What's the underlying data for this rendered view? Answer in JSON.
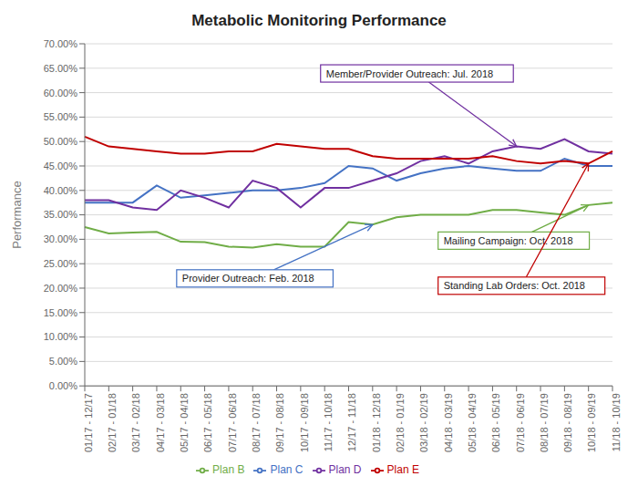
{
  "chart_data": {
    "type": "line",
    "title": "Metabolic Monitoring Performance",
    "ylabel": "Performance",
    "categories": [
      "01/17 - 12/17",
      "02/17 - 01/18",
      "03/17 - 02/18",
      "04/17 - 03/18",
      "05/17 - 04/18",
      "06/17 - 05/18",
      "07/17 - 06/18",
      "08/17 - 07/18",
      "09/17 - 08/18",
      "10/17 - 09/18",
      "11/17 - 10/18",
      "12/17 - 11/18",
      "01/18 - 12/18",
      "02/18 - 01/19",
      "03/18 - 02/19",
      "04/18 - 03/19",
      "05/18 - 04/19",
      "06/18 - 05/19",
      "07/18 - 06/19",
      "08/18 - 07/19",
      "09/18 - 08/19",
      "10/18 - 09/19",
      "11/18 - 10/19"
    ],
    "series": [
      {
        "name": "Plan B",
        "color": "#70ad47",
        "values": [
          32.5,
          31.2,
          31.4,
          31.5,
          29.5,
          29.4,
          28.5,
          28.3,
          29.0,
          28.5,
          28.5,
          33.5,
          33.0,
          34.5,
          35.0,
          35.0,
          35.0,
          36.0,
          36.0,
          35.5,
          35.0,
          37.0,
          37.5
        ]
      },
      {
        "name": "Plan C",
        "color": "#4472c4",
        "values": [
          37.5,
          37.5,
          37.5,
          41.0,
          38.5,
          39.0,
          39.5,
          40.0,
          40.0,
          40.5,
          41.5,
          45.0,
          44.5,
          42.0,
          43.5,
          44.5,
          45.0,
          44.5,
          44.0,
          44.0,
          46.5,
          45.0,
          45.0
        ]
      },
      {
        "name": "Plan D",
        "color": "#7030a0",
        "values": [
          38.0,
          38.0,
          36.5,
          36.0,
          40.0,
          38.5,
          36.5,
          42.0,
          40.5,
          36.5,
          40.5,
          40.5,
          42.0,
          43.5,
          46.0,
          47.0,
          45.5,
          48.0,
          49.0,
          48.5,
          50.5,
          48.0,
          47.5
        ]
      },
      {
        "name": "Plan E",
        "color": "#c00000",
        "values": [
          51.0,
          49.0,
          48.5,
          48.0,
          47.5,
          47.5,
          48.0,
          48.0,
          49.5,
          49.0,
          48.5,
          48.5,
          47.0,
          46.5,
          46.5,
          46.5,
          46.5,
          47.0,
          46.0,
          45.5,
          46.0,
          45.5,
          48.0
        ]
      }
    ],
    "ylim": [
      0,
      70
    ],
    "yticks": [
      {
        "value": 0,
        "label": "0.00%"
      },
      {
        "value": 5,
        "label": "5.00%"
      },
      {
        "value": 10,
        "label": "10.00%"
      },
      {
        "value": 15,
        "label": "15.00%"
      },
      {
        "value": 20,
        "label": "20.00%"
      },
      {
        "value": 25,
        "label": "25.00%"
      },
      {
        "value": 30,
        "label": "30.00%"
      },
      {
        "value": 35,
        "label": "35.00%"
      },
      {
        "value": 40,
        "label": "40.00%"
      },
      {
        "value": 45,
        "label": "45.00%"
      },
      {
        "value": 50,
        "label": "50.00%"
      },
      {
        "value": 55,
        "label": "55.00%"
      },
      {
        "value": 60,
        "label": "60.00%"
      },
      {
        "value": 65,
        "label": "65.00%"
      },
      {
        "value": 70,
        "label": "70.00%"
      }
    ],
    "grid": true,
    "legend": "bottom",
    "annotations": [
      {
        "text": "Member/Provider Outreach: Jul. 2018",
        "series": "Plan D",
        "category": "07/18 - 06/19",
        "color": "#7030a0"
      },
      {
        "text": "Provider Outreach: Feb. 2018",
        "series": "Plan B",
        "category": "01/18 - 12/18",
        "color": "#4472c4"
      },
      {
        "text": "Mailing Campaign: Oct. 2018",
        "series": "Plan B",
        "category": "10/18 - 09/19",
        "color": "#70ad47"
      },
      {
        "text": "Standing Lab Orders: Oct. 2018",
        "series": "Plan E",
        "category": "10/18 - 09/19",
        "color": "#c00000"
      }
    ]
  }
}
